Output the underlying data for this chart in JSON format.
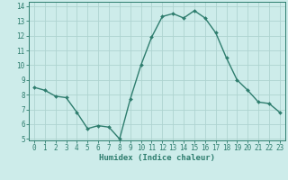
{
  "x": [
    0,
    1,
    2,
    3,
    4,
    5,
    6,
    7,
    8,
    9,
    10,
    11,
    12,
    13,
    14,
    15,
    16,
    17,
    18,
    19,
    20,
    21,
    22,
    23
  ],
  "y": [
    8.5,
    8.3,
    7.9,
    7.8,
    6.8,
    5.7,
    5.9,
    5.8,
    5.0,
    7.7,
    10.0,
    11.9,
    13.3,
    13.5,
    13.2,
    13.7,
    13.2,
    12.2,
    10.5,
    9.0,
    8.3,
    7.5,
    7.4,
    6.8
  ],
  "line_color": "#2e7d6e",
  "marker": "D",
  "marker_size": 2,
  "bg_color": "#cdecea",
  "grid_color": "#aed4d0",
  "xlabel": "Humidex (Indice chaleur)",
  "ylim": [
    5,
    14
  ],
  "xlim": [
    -0.5,
    23.5
  ],
  "yticks": [
    5,
    6,
    7,
    8,
    9,
    10,
    11,
    12,
    13,
    14
  ],
  "xticks": [
    0,
    1,
    2,
    3,
    4,
    5,
    6,
    7,
    8,
    9,
    10,
    11,
    12,
    13,
    14,
    15,
    16,
    17,
    18,
    19,
    20,
    21,
    22,
    23
  ],
  "tick_fontsize": 5.5,
  "xlabel_fontsize": 6.5,
  "line_width": 1.0
}
